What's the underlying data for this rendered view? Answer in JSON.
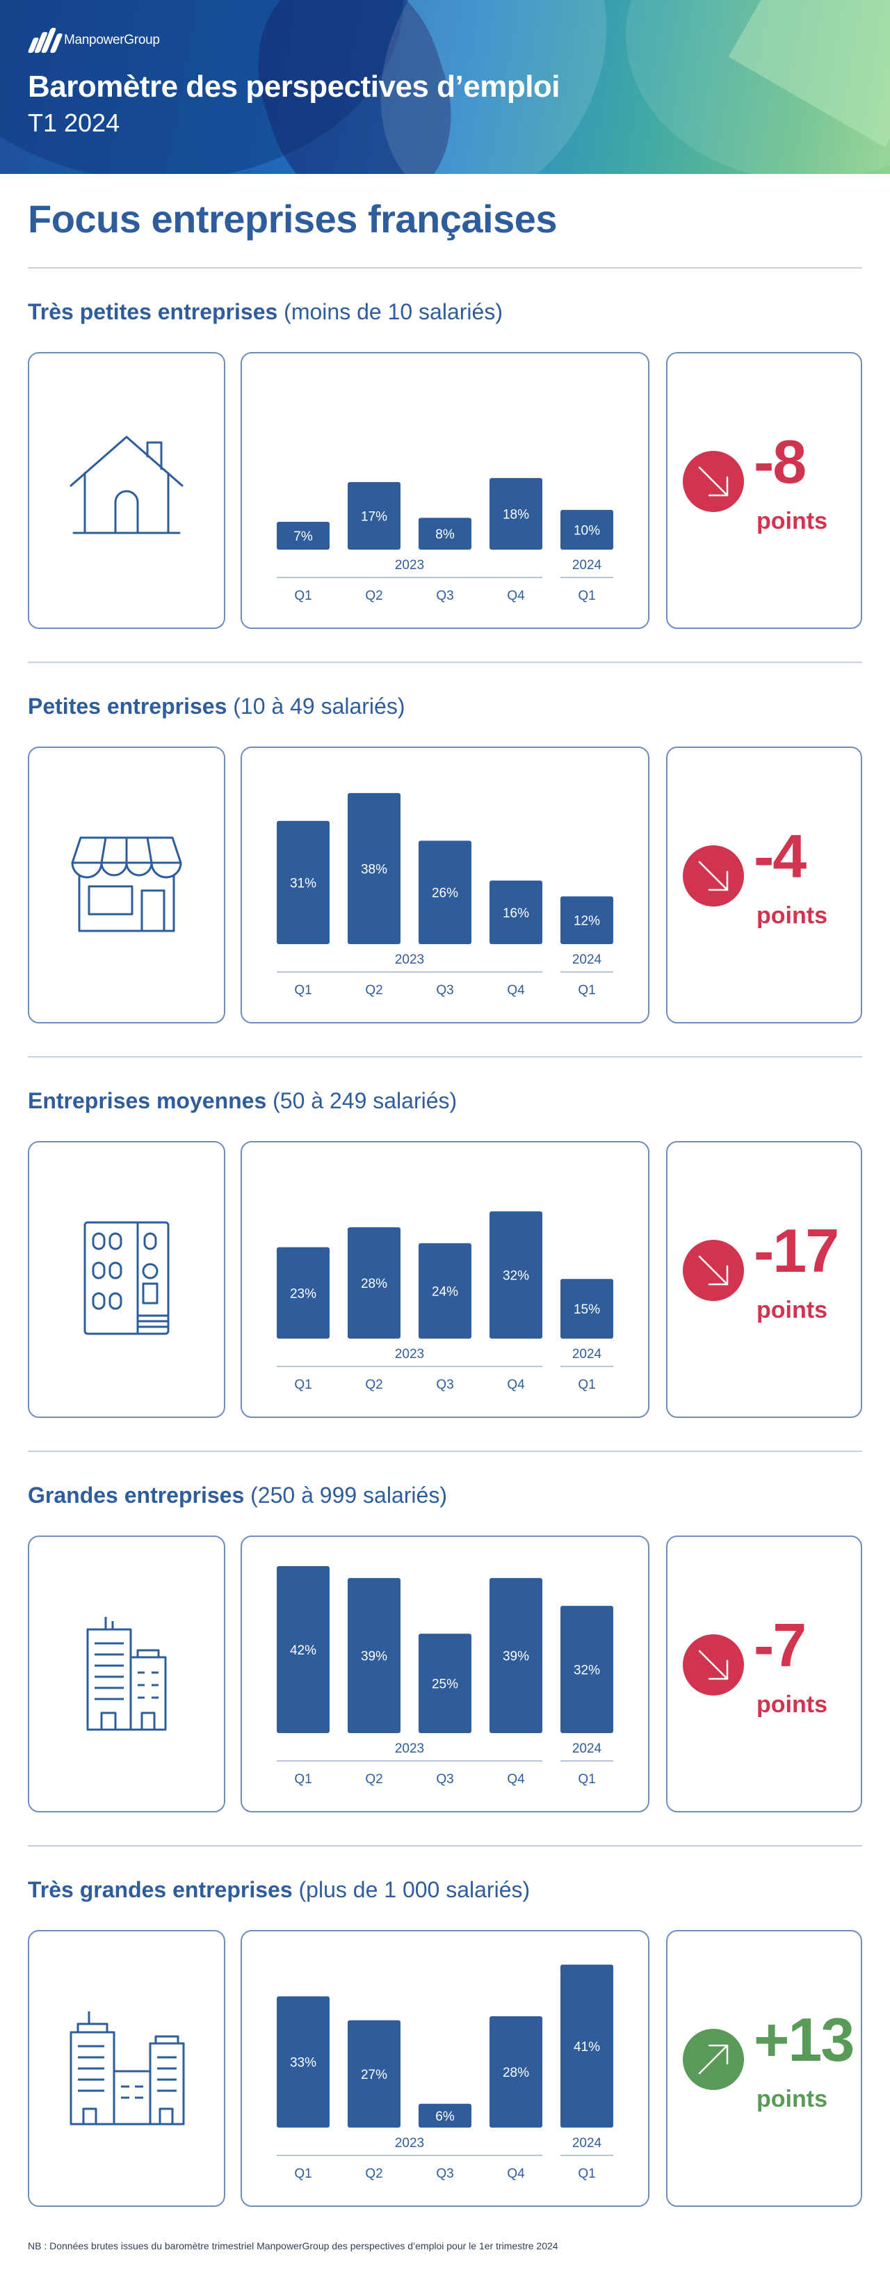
{
  "header": {
    "brand": "ManpowerGroup",
    "title": "Baromètre des perspectives d’emploi",
    "subtitle": "T1 2024"
  },
  "focus_title": "Focus entreprises françaises",
  "colors": {
    "bar": "#2f5d9b",
    "negative": "#d0344f",
    "positive": "#5a9a58",
    "border": "#6f8dbd"
  },
  "sections": [
    {
      "title_bold": "Très petites entreprises",
      "title_rest": " (moins de 10 salariés)",
      "icon": "house-icon",
      "change": {
        "value": "-8",
        "unit": "points",
        "direction": "down"
      }
    },
    {
      "title_bold": "Petites entreprises",
      "title_rest": " (10 à 49 salariés)",
      "icon": "shop-icon",
      "change": {
        "value": "-4",
        "unit": "points",
        "direction": "down"
      }
    },
    {
      "title_bold": "Entreprises moyennes",
      "title_rest": " (50 à 249 salariés)",
      "icon": "building-icon",
      "change": {
        "value": "-17",
        "unit": "points",
        "direction": "down"
      }
    },
    {
      "title_bold": "Grandes entreprises",
      "title_rest": " (250 à 999 salariés)",
      "icon": "office-buildings-icon",
      "change": {
        "value": "-7",
        "unit": "points",
        "direction": "down"
      }
    },
    {
      "title_bold": "Très grandes entreprises",
      "title_rest": " (plus de 1 000 salariés)",
      "icon": "corporate-campus-icon",
      "change": {
        "value": "+13",
        "unit": "points",
        "direction": "up"
      }
    }
  ],
  "chart_data": [
    {
      "type": "bar",
      "categories": [
        "Q1",
        "Q2",
        "Q3",
        "Q4",
        "Q1"
      ],
      "groups": [
        {
          "label": "2023",
          "count": 4
        },
        {
          "label": "2024",
          "count": 1
        }
      ],
      "values": [
        7,
        17,
        8,
        18,
        10
      ],
      "unit": "%"
    },
    {
      "type": "bar",
      "categories": [
        "Q1",
        "Q2",
        "Q3",
        "Q4",
        "Q1"
      ],
      "groups": [
        {
          "label": "2023",
          "count": 4
        },
        {
          "label": "2024",
          "count": 1
        }
      ],
      "values": [
        31,
        38,
        26,
        16,
        12
      ],
      "unit": "%"
    },
    {
      "type": "bar",
      "categories": [
        "Q1",
        "Q2",
        "Q3",
        "Q4",
        "Q1"
      ],
      "groups": [
        {
          "label": "2023",
          "count": 4
        },
        {
          "label": "2024",
          "count": 1
        }
      ],
      "values": [
        23,
        28,
        24,
        32,
        15
      ],
      "unit": "%"
    },
    {
      "type": "bar",
      "categories": [
        "Q1",
        "Q2",
        "Q3",
        "Q4",
        "Q1"
      ],
      "groups": [
        {
          "label": "2023",
          "count": 4
        },
        {
          "label": "2024",
          "count": 1
        }
      ],
      "values": [
        42,
        39,
        25,
        39,
        32
      ],
      "unit": "%"
    },
    {
      "type": "bar",
      "categories": [
        "Q1",
        "Q2",
        "Q3",
        "Q4",
        "Q1"
      ],
      "groups": [
        {
          "label": "2023",
          "count": 4
        },
        {
          "label": "2024",
          "count": 1
        }
      ],
      "values": [
        33,
        27,
        6,
        28,
        41
      ],
      "unit": "%"
    }
  ],
  "footnote": "NB : Données brutes issues du baromètre trimestriel ManpowerGroup des perspectives d’emploi pour le 1er trimestre 2024"
}
